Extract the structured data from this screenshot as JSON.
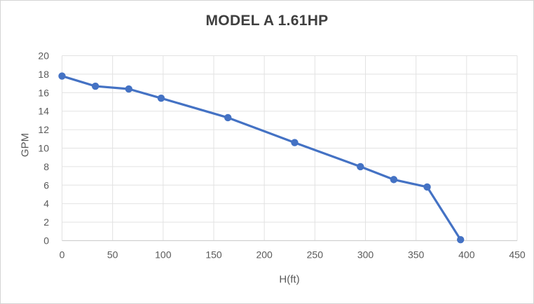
{
  "chart_data": {
    "type": "line",
    "title": "MODEL A 1.61HP",
    "xlabel": "H(ft)",
    "ylabel": "GPM",
    "series": [
      {
        "name": "MODEL A 1.61HP",
        "x": [
          0,
          33,
          66,
          98,
          164,
          230,
          295,
          328,
          361,
          394
        ],
        "y": [
          17.8,
          16.7,
          16.4,
          15.4,
          13.3,
          10.6,
          8.0,
          6.6,
          5.8,
          0.1
        ]
      }
    ],
    "xlim": [
      0,
      450
    ],
    "ylim": [
      0,
      20
    ],
    "x_tick_step": 50,
    "y_tick_step": 2,
    "x_tick_labels": [
      "0",
      "50",
      "100",
      "150",
      "200",
      "250",
      "300",
      "350",
      "400",
      "450"
    ],
    "y_tick_labels": [
      "0",
      "2",
      "4",
      "6",
      "8",
      "10",
      "12",
      "14",
      "16",
      "18",
      "20"
    ],
    "grid": true,
    "legend": "none",
    "marker": "circle",
    "colors": {
      "line": "#4472c4",
      "marker": "#4472c4",
      "gridline": "#e2e2e2",
      "axis_line": "#d0d0d0",
      "tick_label": "#595959",
      "axis_title": "#595959",
      "title": "#3f3f3f",
      "background": "#ffffff",
      "border": "#d4d4d4"
    }
  }
}
